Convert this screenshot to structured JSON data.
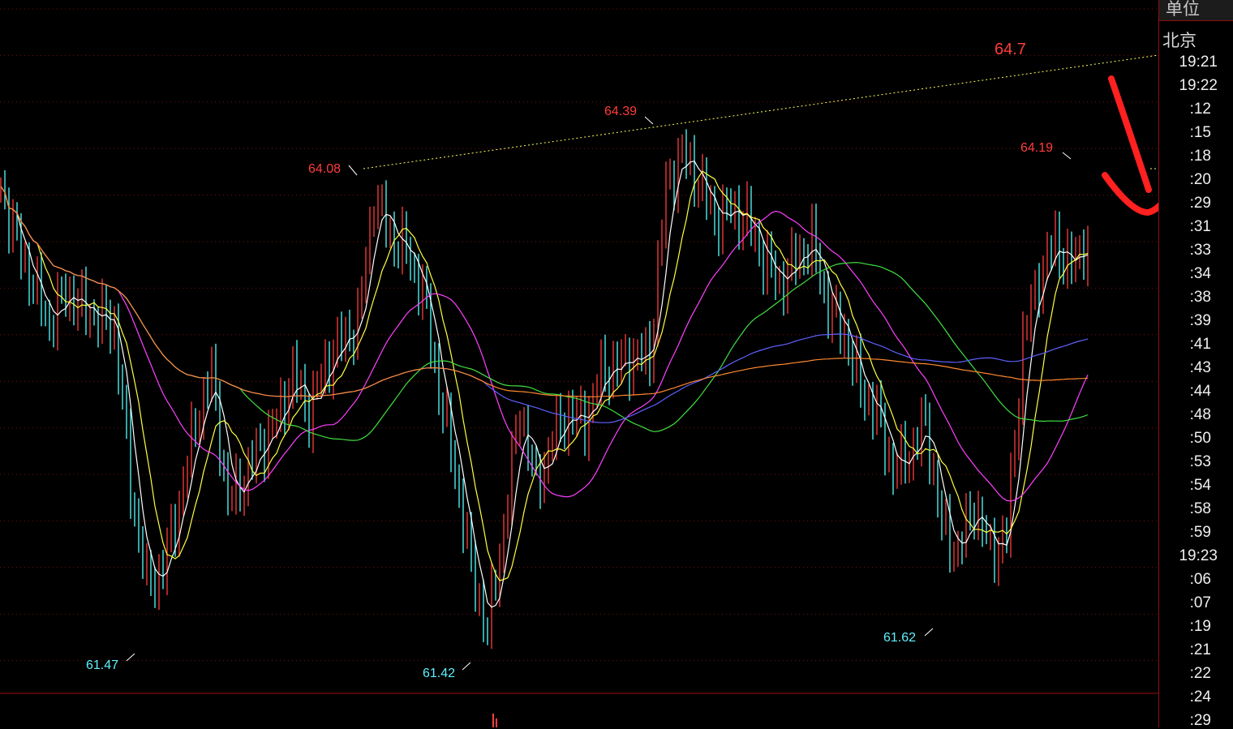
{
  "chart_data": {
    "type": "bar",
    "title": "",
    "xlabel": "",
    "ylabel": "",
    "ylim": [
      61.25,
      65.08
    ],
    "grid": true,
    "values": [
      64.05,
      63.74,
      63.51,
      63.29,
      63.47,
      63.38,
      63.33,
      63.29,
      62.39,
      61.85,
      61.94,
      62.3,
      62.75,
      63.02,
      62.3,
      62.44,
      62.62,
      62.75,
      63.02,
      62.8,
      63.06,
      63.2,
      63.29,
      64.0,
      63.78,
      63.69,
      63.47,
      62.93,
      62.48,
      61.94,
      61.59,
      62.17,
      62.84,
      62.39,
      62.66,
      62.8,
      62.75,
      63.02,
      63.06,
      63.11,
      63.11,
      64.05,
      64.23,
      64.09,
      63.87,
      63.92,
      63.87,
      63.65,
      63.51,
      63.65,
      63.74,
      63.38,
      63.24,
      62.93,
      62.8,
      62.48,
      62.57,
      62.75,
      62.17,
      62.03,
      62.3,
      62.03,
      62.12,
      63.2,
      63.56,
      63.74,
      63.6,
      63.78
    ],
    "up_color": "#ff3c3c",
    "down_color": "#54ffff",
    "moving_averages": [
      {
        "period": 5,
        "color": "#ffffff"
      },
      {
        "period": 10,
        "color": "#ffff40"
      },
      {
        "period": 30,
        "color": "#ff40ff"
      },
      {
        "period": 60,
        "color": "#40e040"
      },
      {
        "period": 120,
        "color": "#6060ff"
      },
      {
        "period": 250,
        "color": "#ff8a30"
      }
    ],
    "trendline": {
      "from": 64.08,
      "through": 64.39,
      "target": 64.7,
      "color": "#ffff60"
    },
    "annotations": {
      "highs": [
        "64.08",
        "64.39",
        "64.19"
      ],
      "lows": [
        "61.47",
        "61.42",
        "61.62"
      ],
      "target": "64.7"
    }
  },
  "axis_panel": {
    "unit_label": "单位",
    "city_label": "北京",
    "times": [
      "19:21",
      "19:22",
      ":12",
      ":15",
      ":18",
      ":20",
      ":29",
      ":31",
      ":33",
      ":34",
      ":38",
      ":39",
      ":41",
      ":43",
      ":44",
      ":48",
      ":50",
      ":53",
      ":54",
      ":58",
      ":59",
      "19:23",
      ":06",
      ":07",
      ":19",
      ":21",
      ":22",
      ":24",
      ":29"
    ]
  },
  "colors": {
    "background": "#000000",
    "grid": "#7a1010",
    "markup": "#ff2020"
  }
}
